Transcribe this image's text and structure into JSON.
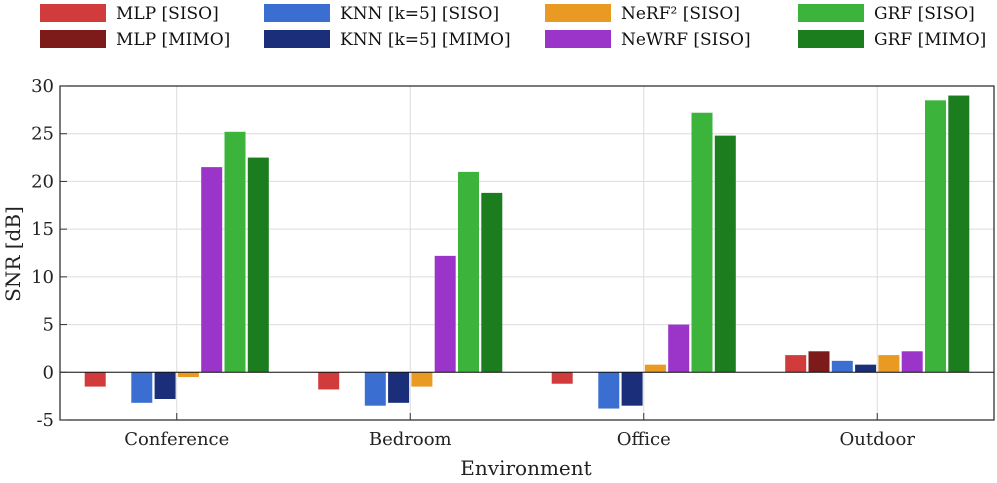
{
  "chart_data": {
    "type": "bar",
    "title": "",
    "xlabel": "Environment",
    "ylabel": "SNR [dB]",
    "ylim": [
      -5,
      30
    ],
    "yticks": [
      -5,
      0,
      5,
      10,
      15,
      20,
      25,
      30
    ],
    "grid": true,
    "legend_position": "top",
    "categories": [
      "Conference",
      "Bedroom",
      "Office",
      "Outdoor"
    ],
    "series": [
      {
        "name": "MLP [SISO]",
        "color": "#d13b3b",
        "values": [
          -1.5,
          -1.8,
          -1.2,
          1.8
        ]
      },
      {
        "name": "MLP [MIMO]",
        "color": "#7d1a1a",
        "values": [
          0,
          0,
          0,
          2.2
        ]
      },
      {
        "name": "KNN [k=5] [SISO]",
        "color": "#3a6fd1",
        "values": [
          -3.2,
          -3.5,
          -3.8,
          1.2
        ]
      },
      {
        "name": "KNN [k=5] [MIMO]",
        "color": "#1b2e7a",
        "values": [
          -2.8,
          -3.2,
          -3.5,
          0.8
        ]
      },
      {
        "name": "NeRF² [SISO]",
        "color": "#e89a22",
        "values": [
          -0.5,
          -1.5,
          0.8,
          1.8
        ]
      },
      {
        "name": "NeWRF [SISO]",
        "color": "#9b35c9",
        "values": [
          21.5,
          12.2,
          5.0,
          2.2
        ]
      },
      {
        "name": "GRF [SISO]",
        "color": "#3cb43c",
        "values": [
          25.2,
          21.0,
          27.2,
          28.5
        ]
      },
      {
        "name": "GRF [MIMO]",
        "color": "#1b7d1e",
        "values": [
          22.5,
          18.8,
          24.8,
          29.0
        ]
      }
    ]
  }
}
